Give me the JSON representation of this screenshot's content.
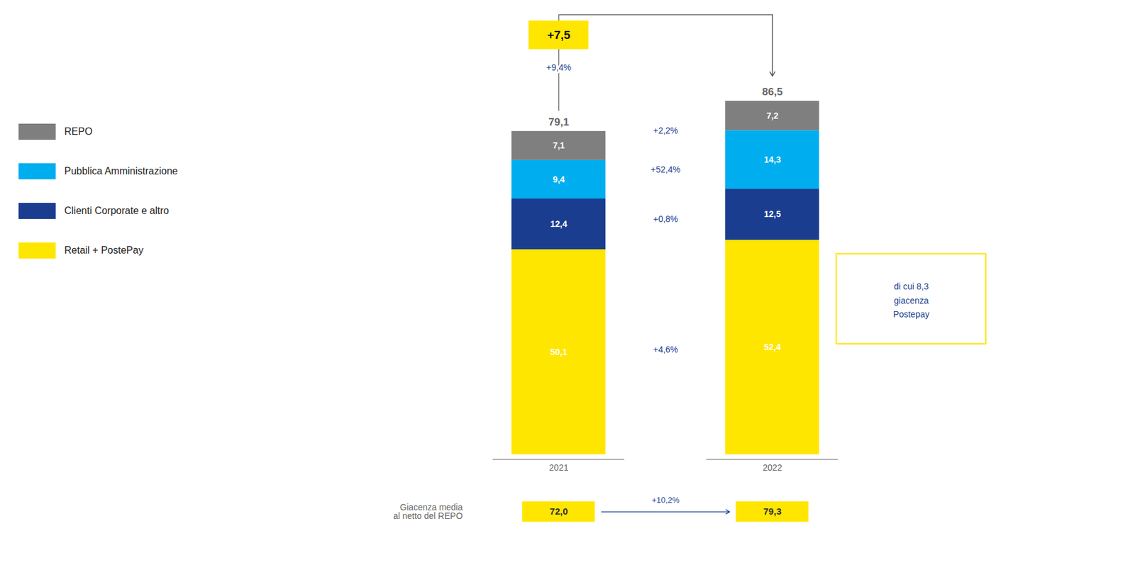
{
  "chart_data": {
    "type": "bar",
    "stacked": true,
    "categories": [
      "2021",
      "2022"
    ],
    "series": [
      {
        "name": "Retail + PostePay",
        "color": "#FFE600",
        "values": [
          50.1,
          52.4
        ],
        "value_labels": [
          "50,1",
          "52,4"
        ]
      },
      {
        "name": "Clienti Corporate e altro",
        "color": "#1A3D8F",
        "values": [
          12.4,
          12.5
        ],
        "value_labels": [
          "12,4",
          "12,5"
        ]
      },
      {
        "name": "Pubblica Amministrazione",
        "color": "#00AEEF",
        "values": [
          9.4,
          14.3
        ],
        "value_labels": [
          "9,4",
          "14,3"
        ]
      },
      {
        "name": "REPO",
        "color": "#7F7F7F",
        "values": [
          7.1,
          7.2
        ],
        "value_labels": [
          "7,1",
          "7,2"
        ]
      }
    ],
    "data_labels": true,
    "ylim": [
      -22,
      108
    ],
    "tick_labels": "x",
    "legend": "left",
    "grid": false,
    "totals": [
      79.1,
      86.5
    ],
    "total_labels": [
      "79,1",
      "86,5"
    ],
    "annotations": {
      "changes": [
        "+4,6%",
        "+0,8%",
        "+52,4%",
        "+2,2%"
      ],
      "total_change": "+7,5",
      "total_change_pct": "+9,4%",
      "bottom_label": "Giacenza media\nal netto del REPO",
      "bottom_values": [
        "72,0",
        "79,3"
      ],
      "bottom_change": "+10,2%",
      "note": "di cui 8,3\ngiacenza\nPostepay"
    }
  }
}
